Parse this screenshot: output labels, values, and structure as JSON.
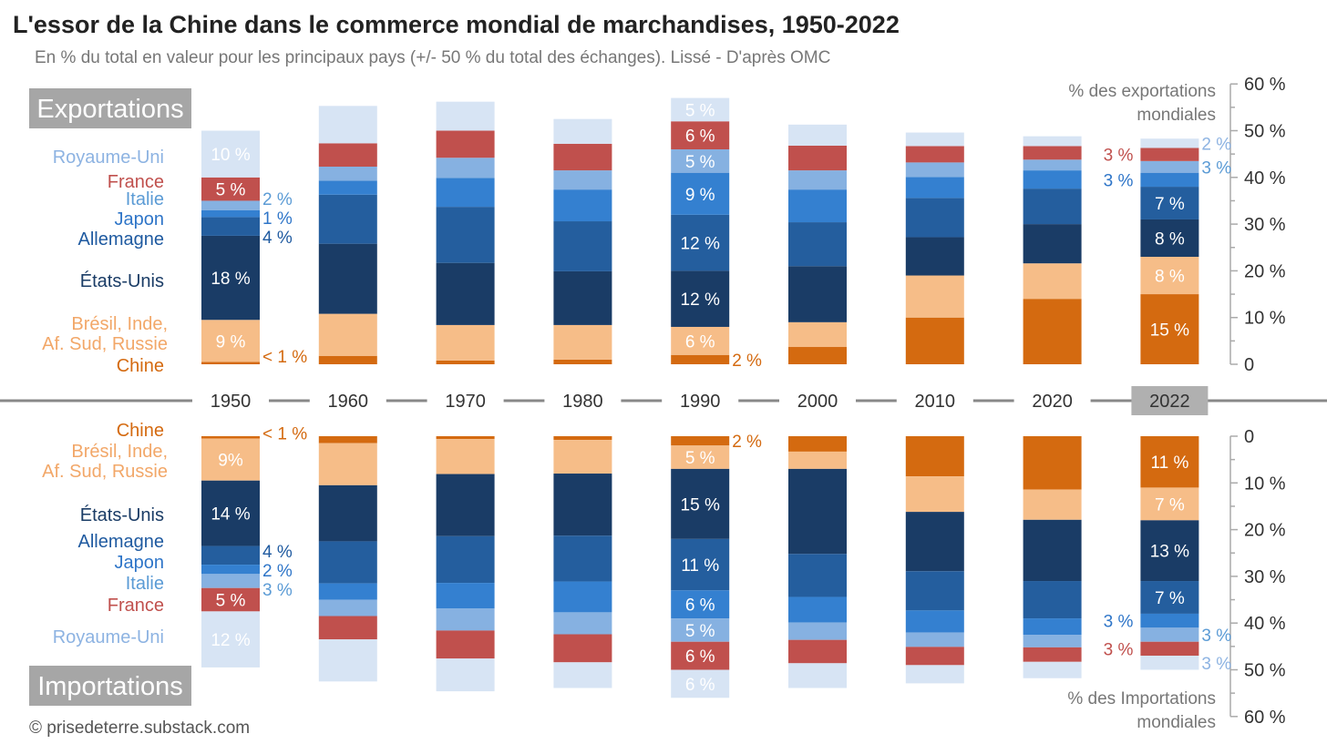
{
  "header": {
    "title": "L'essor de la Chine dans le commerce mondial de marchandises, 1950-2022",
    "subtitle": "En % du total en valeur pour les principaux pays (+/- 50 % du total des échanges). Lissé - D'après OMC"
  },
  "credit": "© prisedeterre.substack.com",
  "chart_data": {
    "type": "bar",
    "stacked": true,
    "title": "L'essor de la Chine dans le commerce mondial de marchandises, 1950-2022",
    "categories": [
      "1950",
      "1960",
      "1970",
      "1980",
      "1990",
      "2000",
      "2010",
      "2020",
      "2022"
    ],
    "highlight_category": "2022",
    "series_names": [
      "Chine",
      "Brésil, Inde, Af. Sud, Russie",
      "États-Unis",
      "Allemagne",
      "Japon",
      "Italie",
      "France",
      "Royaume-Uni"
    ],
    "series_colors": [
      "#d46a10",
      "#f6bd88",
      "#1a3c66",
      "#245e9e",
      "#3480d0",
      "#86b1e1",
      "#c0504d",
      "#d7e4f4"
    ],
    "legend_colors": [
      "#d46a10",
      "#f2a768",
      "#1a3c66",
      "#1f5aa0",
      "#2e75c8",
      "#5b9bd5",
      "#c0504d",
      "#8db3e2"
    ],
    "panels": [
      {
        "name": "Exportations",
        "ylabel": "% des exportations mondiales",
        "ylim": [
          0,
          60
        ],
        "ticks": [
          "0",
          "10 %",
          "20 %",
          "30 %",
          "40 %",
          "50 %",
          "60 %"
        ],
        "values": [
          [
            0.5,
            9,
            18,
            4,
            1.5,
            2,
            5,
            10
          ],
          [
            1.8,
            9,
            15,
            10.5,
            3,
            3,
            5,
            8
          ],
          [
            0.8,
            7.6,
            13.3,
            12,
            6.2,
            4.3,
            5.8,
            6.2
          ],
          [
            1,
            7.4,
            11.5,
            10.7,
            6.8,
            4.1,
            5.7,
            5.3
          ],
          [
            2,
            6,
            12,
            12,
            9,
            5,
            6,
            5
          ],
          [
            3.7,
            5.3,
            12,
            9.4,
            7,
            4.1,
            5.3,
            4.5
          ],
          [
            10,
            9,
            8.2,
            8.4,
            4.5,
            3.1,
            3.5,
            2.9
          ],
          [
            14,
            7.6,
            8.4,
            7.6,
            3.9,
            2.3,
            2.9,
            2.1
          ],
          [
            15,
            8,
            8,
            7,
            3,
            2.5,
            2.8,
            2
          ]
        ],
        "labels": [
          {
            "cat": 0,
            "series": 7,
            "text": "10 %",
            "place": "in"
          },
          {
            "cat": 0,
            "series": 6,
            "text": "5 %",
            "place": "in"
          },
          {
            "cat": 0,
            "series": 5,
            "text": "2 %",
            "place": "right"
          },
          {
            "cat": 0,
            "series": 4,
            "text": "1 %",
            "place": "right"
          },
          {
            "cat": 0,
            "series": 3,
            "text": "4 %",
            "place": "right"
          },
          {
            "cat": 0,
            "series": 2,
            "text": "18 %",
            "place": "in"
          },
          {
            "cat": 0,
            "series": 1,
            "text": "9 %",
            "place": "in"
          },
          {
            "cat": 0,
            "series": 0,
            "text": "< 1 %",
            "place": "right"
          },
          {
            "cat": 4,
            "series": 7,
            "text": "5 %",
            "place": "in"
          },
          {
            "cat": 4,
            "series": 6,
            "text": "6 %",
            "place": "in"
          },
          {
            "cat": 4,
            "series": 5,
            "text": "5 %",
            "place": "in"
          },
          {
            "cat": 4,
            "series": 4,
            "text": "9 %",
            "place": "in"
          },
          {
            "cat": 4,
            "series": 3,
            "text": "12 %",
            "place": "in"
          },
          {
            "cat": 4,
            "series": 2,
            "text": "12 %",
            "place": "in"
          },
          {
            "cat": 4,
            "series": 1,
            "text": "6 %",
            "place": "in"
          },
          {
            "cat": 4,
            "series": 0,
            "text": "2 %",
            "place": "right"
          },
          {
            "cat": 8,
            "series": 7,
            "text": "2 %",
            "place": "right"
          },
          {
            "cat": 8,
            "series": 6,
            "text": "3 %",
            "place": "left"
          },
          {
            "cat": 8,
            "series": 5,
            "text": "3 %",
            "place": "right"
          },
          {
            "cat": 8,
            "series": 4,
            "text": "3 %",
            "place": "left"
          },
          {
            "cat": 8,
            "series": 3,
            "text": "7 %",
            "place": "in"
          },
          {
            "cat": 8,
            "series": 2,
            "text": "8 %",
            "place": "in"
          },
          {
            "cat": 8,
            "series": 1,
            "text": "8 %",
            "place": "in"
          },
          {
            "cat": 8,
            "series": 0,
            "text": "15 %",
            "place": "in"
          }
        ]
      },
      {
        "name": "Importations",
        "ylabel": "% des Importations mondiales",
        "ylim": [
          0,
          60
        ],
        "ticks": [
          "0",
          "10 %",
          "20 %",
          "30 %",
          "40 %",
          "50 %",
          "60 %"
        ],
        "values": [
          [
            0.5,
            9,
            14,
            4,
            2,
            3,
            5,
            12
          ],
          [
            1.5,
            9,
            12,
            9,
            3.5,
            3.5,
            5,
            9
          ],
          [
            0.6,
            7.5,
            13.3,
            10,
            5.5,
            4.7,
            6,
            7
          ],
          [
            0.8,
            7.2,
            13.3,
            9.8,
            6.6,
            4.7,
            6,
            5.5
          ],
          [
            2,
            5,
            15,
            11,
            6,
            5,
            6,
            6
          ],
          [
            3.3,
            3.7,
            18.2,
            9.2,
            5.5,
            3.7,
            5,
            5.3
          ],
          [
            8.6,
            7.6,
            12.7,
            8.4,
            4.7,
            3.1,
            3.9,
            3.9
          ],
          [
            11.4,
            6.5,
            13.1,
            8,
            3.5,
            2.7,
            3.1,
            3.5
          ],
          [
            11,
            7,
            13,
            7,
            3,
            3,
            3,
            3
          ]
        ],
        "labels": [
          {
            "cat": 0,
            "series": 0,
            "text": "< 1 %",
            "place": "right"
          },
          {
            "cat": 0,
            "series": 1,
            "text": "9%",
            "place": "in"
          },
          {
            "cat": 0,
            "series": 2,
            "text": "14 %",
            "place": "in"
          },
          {
            "cat": 0,
            "series": 3,
            "text": "4 %",
            "place": "right"
          },
          {
            "cat": 0,
            "series": 4,
            "text": "2 %",
            "place": "right"
          },
          {
            "cat": 0,
            "series": 5,
            "text": "3 %",
            "place": "right"
          },
          {
            "cat": 0,
            "series": 6,
            "text": "5 %",
            "place": "in"
          },
          {
            "cat": 0,
            "series": 7,
            "text": "12 %",
            "place": "in"
          },
          {
            "cat": 4,
            "series": 0,
            "text": "2 %",
            "place": "right"
          },
          {
            "cat": 4,
            "series": 1,
            "text": "5 %",
            "place": "in"
          },
          {
            "cat": 4,
            "series": 2,
            "text": "15 %",
            "place": "in"
          },
          {
            "cat": 4,
            "series": 3,
            "text": "11 %",
            "place": "in"
          },
          {
            "cat": 4,
            "series": 4,
            "text": "6 %",
            "place": "in"
          },
          {
            "cat": 4,
            "series": 5,
            "text": "5 %",
            "place": "in"
          },
          {
            "cat": 4,
            "series": 6,
            "text": "6 %",
            "place": "in"
          },
          {
            "cat": 4,
            "series": 7,
            "text": "6 %",
            "place": "in"
          },
          {
            "cat": 8,
            "series": 0,
            "text": "11 %",
            "place": "in"
          },
          {
            "cat": 8,
            "series": 1,
            "text": "7 %",
            "place": "in"
          },
          {
            "cat": 8,
            "series": 2,
            "text": "13 %",
            "place": "in"
          },
          {
            "cat": 8,
            "series": 3,
            "text": "7 %",
            "place": "in"
          },
          {
            "cat": 8,
            "series": 4,
            "text": "3 %",
            "place": "left"
          },
          {
            "cat": 8,
            "series": 5,
            "text": "3 %",
            "place": "right"
          },
          {
            "cat": 8,
            "series": 6,
            "text": "3 %",
            "place": "left"
          },
          {
            "cat": 8,
            "series": 7,
            "text": "3 %",
            "place": "right"
          }
        ]
      }
    ]
  },
  "legend": {
    "china": "Chine",
    "bris_line1": "Brésil, Inde,",
    "bris_line2": "Af. Sud, Russie",
    "usa": "États-Unis",
    "germany": "Allemagne",
    "japan": "Japon",
    "italy": "Italie",
    "france": "France",
    "uk": "Royaume-Uni"
  },
  "axis_titles": {
    "exports_line1": "% des exportations",
    "exports_line2": "mondiales",
    "imports_line1": "% des Importations",
    "imports_line2": "mondiales"
  }
}
